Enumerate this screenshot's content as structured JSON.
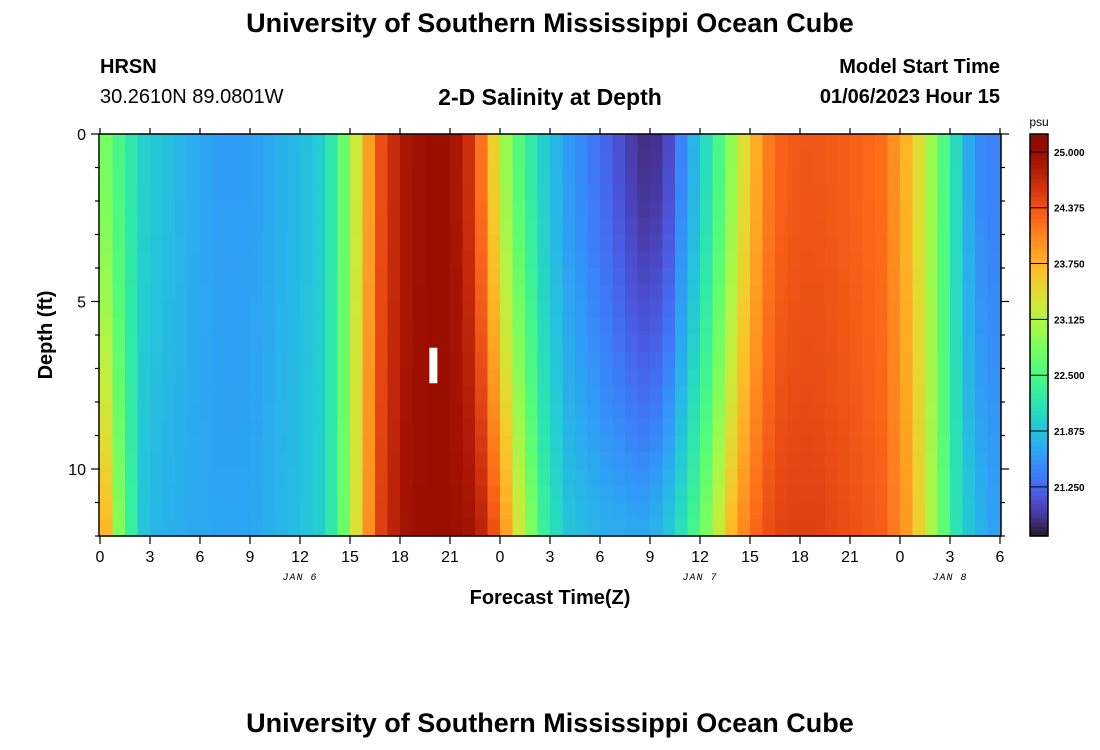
{
  "header": {
    "title": "University of Southern Mississippi Ocean Cube",
    "station": "HRSN",
    "coordinates": "30.2610N  89.0801W",
    "subtitle": "2-D Salinity at Depth",
    "start_label": "Model Start Time",
    "start_value": "01/06/2023 Hour 15"
  },
  "footer": {
    "title": "University of Southern Mississippi Ocean Cube"
  },
  "chart_data": {
    "type": "heatmap",
    "title": "2-D Salinity at Depth",
    "xlabel": "Forecast Time(Z)",
    "ylabel": "Depth (ft)",
    "x_range_hours": [
      0,
      54
    ],
    "y_range": [
      0,
      12
    ],
    "y_inverted": true,
    "x_tick_labels": [
      "0",
      "3",
      "6",
      "9",
      "12",
      "15",
      "18",
      "21",
      "0",
      "3",
      "6",
      "9",
      "12",
      "15",
      "18",
      "21",
      "0",
      "3",
      "6"
    ],
    "y_ticks": [
      0,
      5,
      10
    ],
    "date_labels": [
      {
        "label": "JAN 6",
        "hour": 12
      },
      {
        "label": "JAN 7",
        "hour": 36
      },
      {
        "label": "JAN 8",
        "hour": 51
      }
    ],
    "colorbar": {
      "unit": "psu",
      "range": [
        20.7,
        25.2
      ],
      "ticks": [
        "25.000",
        "24.375",
        "23.750",
        "23.125",
        "22.500",
        "21.875",
        "21.250"
      ],
      "tick_values": [
        25.0,
        24.375,
        23.75,
        23.125,
        22.5,
        21.875,
        21.25
      ],
      "colormap": "turbo"
    },
    "surface_profile": {
      "hours": [
        0,
        0.8,
        1.6,
        2.5,
        3.5,
        5,
        7,
        9,
        10.5,
        12,
        13.5,
        14.5,
        15.3,
        16,
        17,
        18.5,
        19.5,
        21,
        22.5,
        23.3,
        24,
        25,
        26.5,
        28,
        30,
        32,
        33,
        34,
        35,
        36,
        37,
        38,
        39,
        40,
        41,
        42,
        43,
        45,
        47,
        48.5,
        49.5,
        50.5,
        51.5,
        52.5,
        54
      ],
      "salinity": [
        22.9,
        22.6,
        22.3,
        22.0,
        21.9,
        21.75,
        21.6,
        21.6,
        21.7,
        21.8,
        22.0,
        22.6,
        23.2,
        23.8,
        24.5,
        24.9,
        25.0,
        25.0,
        24.5,
        23.8,
        23.2,
        22.6,
        22.0,
        21.6,
        21.3,
        20.95,
        20.85,
        21.0,
        21.5,
        21.9,
        22.4,
        23.0,
        23.6,
        24.1,
        24.3,
        24.35,
        24.35,
        24.3,
        24.2,
        23.7,
        23.2,
        22.6,
        22.0,
        21.5,
        21.4
      ]
    },
    "bottom_profile": {
      "hours": [
        0,
        0.5,
        1.3,
        2.5,
        3.5,
        5,
        7,
        9,
        10.5,
        12,
        13.5,
        14.5,
        15.3,
        16,
        17,
        18.5,
        19.5,
        21,
        22.5,
        23.3,
        24,
        25,
        26.5,
        28,
        30,
        32,
        33,
        34,
        35,
        36,
        37,
        38,
        39,
        40,
        41,
        42,
        43,
        45,
        47,
        48.5,
        49.5,
        50.5,
        51.5,
        52.5,
        54
      ],
      "salinity": [
        24.5,
        23.5,
        22.7,
        21.9,
        21.75,
        21.7,
        21.65,
        21.65,
        21.75,
        21.85,
        22.0,
        22.6,
        23.3,
        23.9,
        24.6,
        24.95,
        25.0,
        25.0,
        24.9,
        24.6,
        24.2,
        23.4,
        22.4,
        21.9,
        21.75,
        21.7,
        21.7,
        21.9,
        22.2,
        22.6,
        23.2,
        23.8,
        24.2,
        24.4,
        24.5,
        24.5,
        24.5,
        24.4,
        24.3,
        23.9,
        23.3,
        22.7,
        22.1,
        21.8,
        21.6
      ]
    },
    "marker": {
      "hour": 20,
      "depth_from": 6.5,
      "depth_to": 7.5
    }
  }
}
